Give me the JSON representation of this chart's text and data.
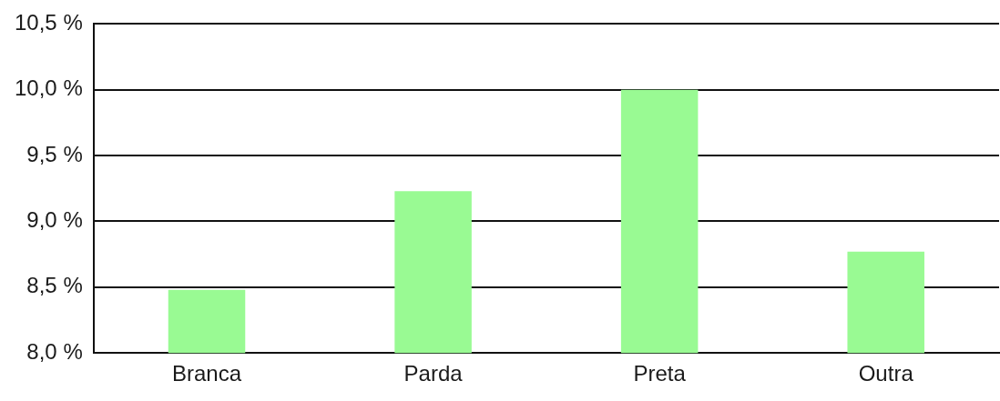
{
  "chart_data": {
    "type": "bar",
    "categories": [
      "Branca",
      "Parda",
      "Preta",
      "Outra"
    ],
    "values": [
      8.48,
      9.23,
      10.0,
      8.77
    ],
    "color": "#99fa93",
    "ylim": [
      8.0,
      10.5
    ],
    "yticks": [
      {
        "value": 8.0,
        "label": "8,0 %"
      },
      {
        "value": 8.5,
        "label": "8,5 %"
      },
      {
        "value": 9.0,
        "label": "9,0 %"
      },
      {
        "value": 9.5,
        "label": "9,5 %"
      },
      {
        "value": 10.0,
        "label": "10,0 %"
      },
      {
        "value": 10.5,
        "label": "10,5 %"
      }
    ],
    "grid": "y"
  }
}
